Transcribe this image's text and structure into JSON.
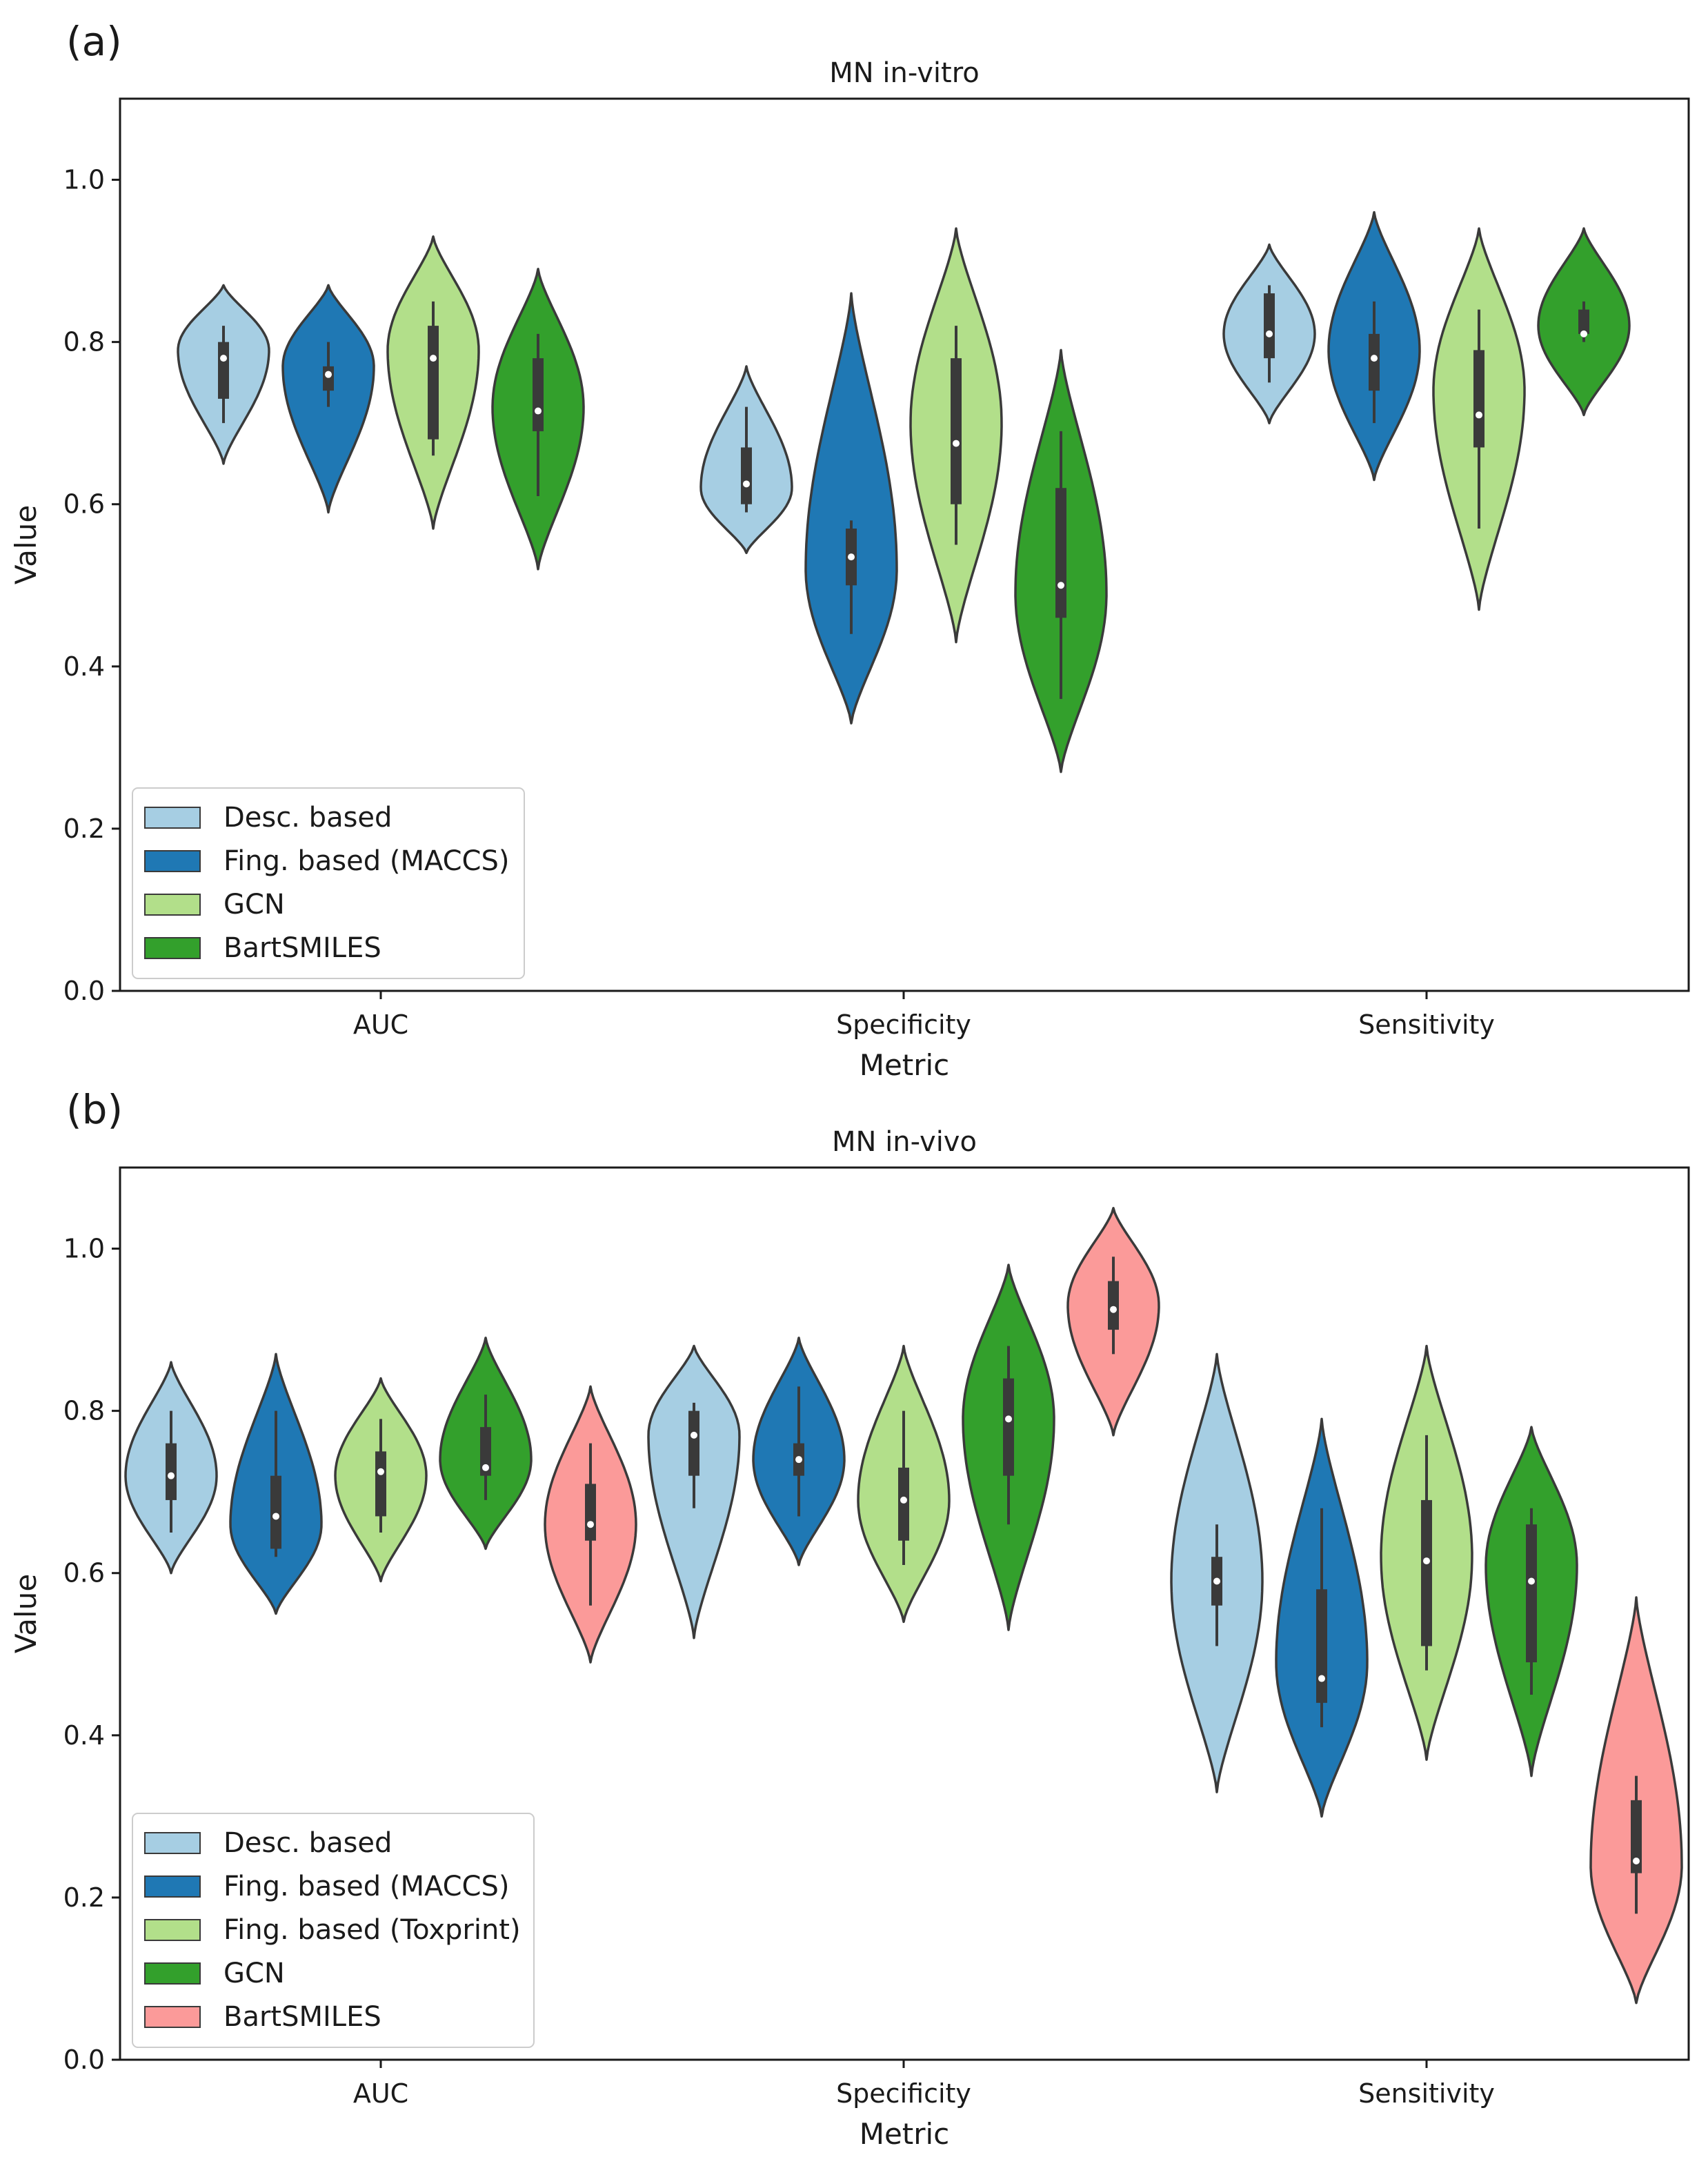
{
  "colors": {
    "light_blue": "#a6cee3",
    "dark_blue": "#1f78b4",
    "light_green": "#b2df8a",
    "dark_green": "#33a02c",
    "pink": "#fb9a99",
    "outline": "#3a3a3a",
    "box": "#3a3a3a",
    "median": "#ffffff"
  },
  "chart_data": [
    {
      "panel_label": "(a)",
      "type": "violin",
      "title": "MN in-vitro",
      "xlabel": "Metric",
      "ylabel": "Value",
      "ylim": [
        0,
        1.1
      ],
      "yticks": [
        "0.0",
        "0.2",
        "0.4",
        "0.6",
        "0.8",
        "1.0"
      ],
      "categories": [
        "AUC",
        "Specificity",
        "Sensitivity"
      ],
      "legend_position": "lower-left",
      "series": [
        {
          "name": "Desc. based",
          "color": "#a6cee3",
          "violins": [
            {
              "min": 0.65,
              "max": 0.87,
              "peak": 0.79,
              "q1": 0.73,
              "q3": 0.8,
              "median": 0.78,
              "wlo": 0.7,
              "whi": 0.82
            },
            {
              "min": 0.54,
              "max": 0.77,
              "peak": 0.62,
              "q1": 0.6,
              "q3": 0.67,
              "median": 0.625,
              "wlo": 0.59,
              "whi": 0.72
            },
            {
              "min": 0.7,
              "max": 0.92,
              "peak": 0.81,
              "q1": 0.78,
              "q3": 0.86,
              "median": 0.81,
              "wlo": 0.75,
              "whi": 0.87
            }
          ]
        },
        {
          "name": "Fing. based (MACCS)",
          "color": "#1f78b4",
          "violins": [
            {
              "min": 0.59,
              "max": 0.87,
              "peak": 0.77,
              "q1": 0.74,
              "q3": 0.77,
              "median": 0.76,
              "wlo": 0.72,
              "whi": 0.8
            },
            {
              "min": 0.33,
              "max": 0.86,
              "peak": 0.52,
              "q1": 0.5,
              "q3": 0.57,
              "median": 0.535,
              "wlo": 0.44,
              "whi": 0.58
            },
            {
              "min": 0.63,
              "max": 0.96,
              "peak": 0.79,
              "q1": 0.74,
              "q3": 0.81,
              "median": 0.78,
              "wlo": 0.7,
              "whi": 0.85
            }
          ]
        },
        {
          "name": "GCN",
          "color": "#b2df8a",
          "violins": [
            {
              "min": 0.57,
              "max": 0.93,
              "peak": 0.79,
              "q1": 0.68,
              "q3": 0.82,
              "median": 0.78,
              "wlo": 0.66,
              "whi": 0.85
            },
            {
              "min": 0.43,
              "max": 0.94,
              "peak": 0.7,
              "q1": 0.6,
              "q3": 0.78,
              "median": 0.675,
              "wlo": 0.55,
              "whi": 0.82
            },
            {
              "min": 0.47,
              "max": 0.94,
              "peak": 0.74,
              "q1": 0.67,
              "q3": 0.79,
              "median": 0.71,
              "wlo": 0.57,
              "whi": 0.84
            }
          ]
        },
        {
          "name": "BartSMILES",
          "color": "#33a02c",
          "violins": [
            {
              "min": 0.52,
              "max": 0.89,
              "peak": 0.72,
              "q1": 0.69,
              "q3": 0.78,
              "median": 0.715,
              "wlo": 0.61,
              "whi": 0.81
            },
            {
              "min": 0.27,
              "max": 0.79,
              "peak": 0.49,
              "q1": 0.46,
              "q3": 0.62,
              "median": 0.5,
              "wlo": 0.36,
              "whi": 0.69
            },
            {
              "min": 0.71,
              "max": 0.94,
              "peak": 0.82,
              "q1": 0.81,
              "q3": 0.84,
              "median": 0.81,
              "wlo": 0.8,
              "whi": 0.85
            }
          ]
        }
      ]
    },
    {
      "panel_label": "(b)",
      "type": "violin",
      "title": "MN in-vivo",
      "xlabel": "Metric",
      "ylabel": "Value",
      "ylim": [
        0,
        1.1
      ],
      "yticks": [
        "0.0",
        "0.2",
        "0.4",
        "0.6",
        "0.8",
        "1.0"
      ],
      "categories": [
        "AUC",
        "Specificity",
        "Sensitivity"
      ],
      "legend_position": "lower-left",
      "series": [
        {
          "name": "Desc. based",
          "color": "#a6cee3",
          "violins": [
            {
              "min": 0.6,
              "max": 0.86,
              "peak": 0.72,
              "q1": 0.69,
              "q3": 0.76,
              "median": 0.72,
              "wlo": 0.65,
              "whi": 0.8
            },
            {
              "min": 0.52,
              "max": 0.88,
              "peak": 0.77,
              "q1": 0.72,
              "q3": 0.8,
              "median": 0.77,
              "wlo": 0.68,
              "whi": 0.81
            },
            {
              "min": 0.33,
              "max": 0.87,
              "peak": 0.59,
              "q1": 0.56,
              "q3": 0.62,
              "median": 0.59,
              "wlo": 0.51,
              "whi": 0.66
            }
          ]
        },
        {
          "name": "Fing. based (MACCS)",
          "color": "#1f78b4",
          "violins": [
            {
              "min": 0.55,
              "max": 0.87,
              "peak": 0.66,
              "q1": 0.63,
              "q3": 0.72,
              "median": 0.67,
              "wlo": 0.62,
              "whi": 0.8
            },
            {
              "min": 0.61,
              "max": 0.89,
              "peak": 0.74,
              "q1": 0.72,
              "q3": 0.76,
              "median": 0.74,
              "wlo": 0.67,
              "whi": 0.83
            },
            {
              "min": 0.3,
              "max": 0.79,
              "peak": 0.49,
              "q1": 0.44,
              "q3": 0.58,
              "median": 0.47,
              "wlo": 0.41,
              "whi": 0.68
            }
          ]
        },
        {
          "name": "Fing. based (Toxprint)",
          "color": "#b2df8a",
          "violins": [
            {
              "min": 0.59,
              "max": 0.84,
              "peak": 0.72,
              "q1": 0.67,
              "q3": 0.75,
              "median": 0.725,
              "wlo": 0.65,
              "whi": 0.79
            },
            {
              "min": 0.54,
              "max": 0.88,
              "peak": 0.69,
              "q1": 0.64,
              "q3": 0.73,
              "median": 0.69,
              "wlo": 0.61,
              "whi": 0.8
            },
            {
              "min": 0.37,
              "max": 0.88,
              "peak": 0.62,
              "q1": 0.51,
              "q3": 0.69,
              "median": 0.615,
              "wlo": 0.48,
              "whi": 0.77
            }
          ]
        },
        {
          "name": "GCN",
          "color": "#33a02c",
          "violins": [
            {
              "min": 0.63,
              "max": 0.89,
              "peak": 0.74,
              "q1": 0.72,
              "q3": 0.78,
              "median": 0.73,
              "wlo": 0.69,
              "whi": 0.82
            },
            {
              "min": 0.53,
              "max": 0.98,
              "peak": 0.79,
              "q1": 0.72,
              "q3": 0.84,
              "median": 0.79,
              "wlo": 0.66,
              "whi": 0.88
            },
            {
              "min": 0.35,
              "max": 0.78,
              "peak": 0.61,
              "q1": 0.49,
              "q3": 0.66,
              "median": 0.59,
              "wlo": 0.45,
              "whi": 0.68
            }
          ]
        },
        {
          "name": "BartSMILES",
          "color": "#fb9a99",
          "violins": [
            {
              "min": 0.49,
              "max": 0.83,
              "peak": 0.66,
              "q1": 0.64,
              "q3": 0.71,
              "median": 0.66,
              "wlo": 0.56,
              "whi": 0.76
            },
            {
              "min": 0.77,
              "max": 1.05,
              "peak": 0.93,
              "q1": 0.9,
              "q3": 0.96,
              "median": 0.925,
              "wlo": 0.87,
              "whi": 0.99
            },
            {
              "min": 0.07,
              "max": 0.57,
              "peak": 0.24,
              "q1": 0.23,
              "q3": 0.32,
              "median": 0.245,
              "wlo": 0.18,
              "whi": 0.35
            }
          ]
        }
      ]
    }
  ]
}
